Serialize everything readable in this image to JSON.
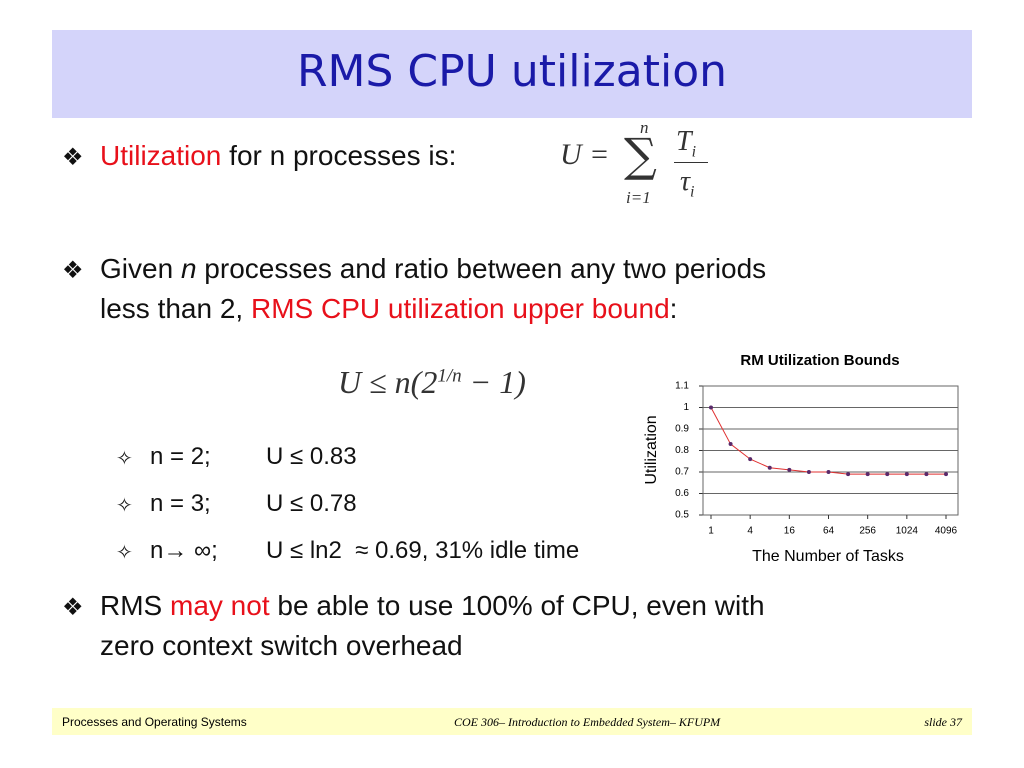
{
  "title": "RMS CPU utilization",
  "bullets": [
    {
      "marker": "❖",
      "lines": [
        [
          {
            "text": "Utilization",
            "color": "#e8101a"
          },
          {
            "text": " for n processes is:"
          }
        ]
      ]
    },
    {
      "marker": "❖",
      "lines": [
        [
          {
            "text": "Given "
          },
          {
            "text": "n",
            "italic": true
          },
          {
            "text": " processes and ratio between any two periods"
          }
        ],
        [
          {
            "text": "less than 2, "
          },
          {
            "text": "RMS CPU utilization upper bound",
            "color": "#e8101a"
          },
          {
            "text": ":"
          }
        ]
      ]
    },
    {
      "marker": "❖",
      "lines": [
        [
          {
            "text": "RMS "
          },
          {
            "text": "may not",
            "color": "#e8101a"
          },
          {
            "text": " be able to use 100% of CPU, even with"
          }
        ],
        [
          {
            "text": "zero context switch overhead"
          }
        ]
      ]
    }
  ],
  "formula1": {
    "lhs": "U =",
    "sum": "∑",
    "upper": "n",
    "lower": "i=1",
    "num": "T",
    "num_sub": "i",
    "den": "τ",
    "den_sub": "i"
  },
  "formula2": {
    "text": "U ≤ n(2",
    "sup": "1/n",
    "rest": " − 1)"
  },
  "sub_bullets": [
    {
      "marker": "✧",
      "n": "n = 2;",
      "u": "U ≤ 0.83"
    },
    {
      "marker": "✧",
      "n": "n = 3;",
      "u": "U ≤ 0.78"
    },
    {
      "marker": "✧",
      "n": "n→ ∞;",
      "u": "U ≤ ln2  ≈ 0.69, 31% idle time"
    }
  ],
  "chart_data": {
    "type": "line",
    "title": "RM Utilization Bounds",
    "x_label": "The Number of Tasks",
    "y_label": "Utilization",
    "x": [
      1,
      2,
      4,
      8,
      16,
      32,
      64,
      128,
      256,
      512,
      1024,
      2048,
      4096
    ],
    "values": [
      1,
      0.83,
      0.76,
      0.72,
      0.71,
      0.7,
      0.7,
      0.69,
      0.69,
      0.69,
      0.69,
      0.69,
      0.69
    ],
    "color": "#e03030",
    "point_color": "#5a2a6a",
    "x_log_base": 2,
    "xlim": [
      1,
      4096
    ],
    "xticks": [
      1,
      4,
      16,
      64,
      256,
      1024,
      4096
    ],
    "ylim": [
      0.5,
      1.1
    ],
    "yticks": [
      0.5,
      0.6,
      0.7,
      0.8,
      0.9,
      1,
      1.1
    ],
    "grid": true
  },
  "footer": {
    "left": "Processes and Operating Systems",
    "center": "COE 306– Introduction to Embedded System– KFUPM",
    "right": "slide 37"
  }
}
